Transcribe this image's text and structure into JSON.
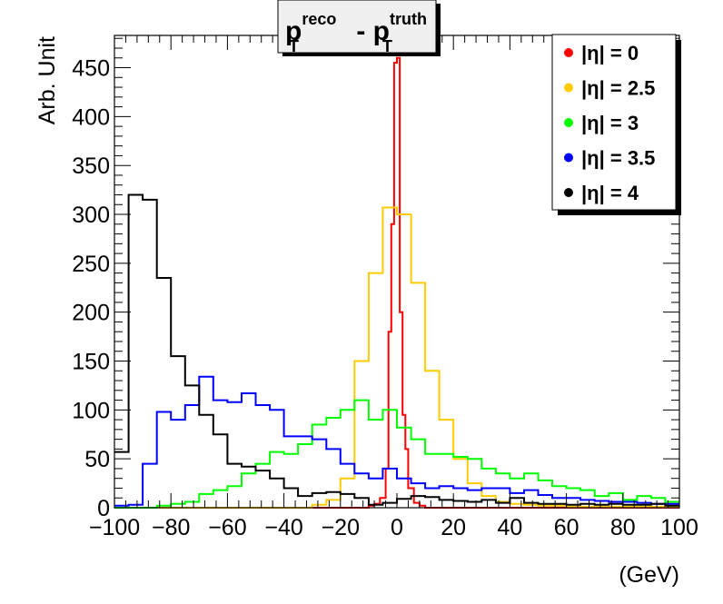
{
  "chart_data": {
    "type": "step-histogram",
    "title": {
      "p": "p",
      "sup1": "reco",
      "sub1": "T",
      "minus": " - ",
      "p2": "p",
      "sup2": "truth",
      "sub2": "T"
    },
    "xlabel": "(GeV)",
    "ylabel": "Arb. Unit",
    "xlim": [
      -100,
      100
    ],
    "ylim": [
      0,
      483
    ],
    "x_ticks": [
      -100,
      -80,
      -60,
      -40,
      -20,
      0,
      20,
      40,
      60,
      80,
      100
    ],
    "x_tick_labels": [
      "−100",
      "−80",
      "−60",
      "−40",
      "−20",
      "0",
      "20",
      "40",
      "60",
      "80",
      "100"
    ],
    "y_ticks": [
      0,
      50,
      100,
      150,
      200,
      250,
      300,
      350,
      400,
      450
    ],
    "y_tick_labels": [
      "0",
      "50",
      "100",
      "150",
      "200",
      "250",
      "300",
      "350",
      "400",
      "450"
    ],
    "legend": {
      "placement": "top-right",
      "entries": [
        {
          "label": "|η| = 0",
          "color": "#ff0000"
        },
        {
          "label": "|η| = 2.5",
          "color": "#ffcc00"
        },
        {
          "label": "|η| = 3",
          "color": "#00ff00"
        },
        {
          "label": "|η| = 3.5",
          "color": "#0000ff"
        },
        {
          "label": "|η| = 4",
          "color": "#000000"
        }
      ]
    },
    "series": [
      {
        "name": "|η| = 0",
        "color": "#ff0000",
        "edges": [
          -100,
          -10,
          -8,
          -6,
          -4,
          -3,
          -2,
          -1,
          0,
          1,
          2,
          3,
          4,
          6,
          8,
          10,
          100
        ],
        "values": [
          0,
          2,
          4,
          10,
          40,
          180,
          290,
          455,
          460,
          200,
          95,
          60,
          20,
          5,
          2,
          0
        ]
      },
      {
        "name": "|η| = 2.5",
        "color": "#ffcc00",
        "edges": [
          -100,
          -30,
          -25,
          -20,
          -15,
          -10,
          -5,
          0,
          5,
          10,
          15,
          20,
          25,
          30,
          35,
          40,
          45,
          50,
          55,
          60,
          65,
          70,
          75,
          80,
          85,
          90,
          95,
          100
        ],
        "values": [
          0,
          3,
          8,
          30,
          150,
          240,
          307,
          300,
          230,
          140,
          90,
          50,
          25,
          12,
          6,
          4,
          3,
          2,
          2,
          1,
          1,
          1,
          1,
          1,
          1,
          1,
          1
        ]
      },
      {
        "name": "|η| = 3",
        "color": "#00ff00",
        "edges": [
          -100,
          -95,
          -90,
          -85,
          -80,
          -75,
          -70,
          -65,
          -60,
          -55,
          -50,
          -45,
          -40,
          -35,
          -30,
          -25,
          -20,
          -15,
          -10,
          -5,
          0,
          5,
          10,
          15,
          20,
          25,
          30,
          35,
          40,
          45,
          50,
          55,
          60,
          65,
          70,
          75,
          80,
          85,
          90,
          95,
          100
        ],
        "values": [
          0,
          0,
          0,
          2,
          4,
          6,
          14,
          18,
          22,
          35,
          45,
          57,
          55,
          65,
          85,
          92,
          100,
          110,
          90,
          100,
          82,
          70,
          55,
          55,
          52,
          50,
          40,
          35,
          30,
          35,
          28,
          22,
          20,
          18,
          12,
          15,
          8,
          12,
          10,
          6
        ]
      },
      {
        "name": "|η| = 3.5",
        "color": "#0000ff",
        "edges": [
          -100,
          -95,
          -90,
          -85,
          -80,
          -75,
          -70,
          -65,
          -60,
          -55,
          -50,
          -45,
          -40,
          -35,
          -30,
          -25,
          -20,
          -15,
          -10,
          -5,
          0,
          5,
          10,
          15,
          20,
          25,
          30,
          35,
          40,
          45,
          50,
          55,
          60,
          65,
          70,
          75,
          80,
          85,
          90,
          95,
          100
        ],
        "values": [
          2,
          3,
          45,
          98,
          90,
          105,
          134,
          110,
          108,
          117,
          105,
          100,
          73,
          73,
          70,
          60,
          45,
          35,
          30,
          40,
          30,
          25,
          20,
          22,
          20,
          18,
          20,
          20,
          15,
          18,
          13,
          10,
          10,
          8,
          7,
          6,
          6,
          5,
          4,
          4
        ]
      },
      {
        "name": "|η| = 4",
        "color": "#000000",
        "edges": [
          -100,
          -95,
          -90,
          -85,
          -80,
          -75,
          -70,
          -65,
          -60,
          -55,
          -50,
          -45,
          -40,
          -35,
          -30,
          -25,
          -20,
          -15,
          -10,
          -5,
          0,
          5,
          10,
          15,
          20,
          25,
          30,
          35,
          40,
          45,
          50,
          55,
          60,
          65,
          70,
          75,
          80,
          85,
          90,
          95,
          100
        ],
        "values": [
          57,
          320,
          315,
          235,
          155,
          125,
          95,
          75,
          45,
          42,
          38,
          30,
          20,
          12,
          15,
          16,
          14,
          10,
          3,
          5,
          9,
          12,
          11,
          8,
          7,
          6,
          8,
          5,
          10,
          5,
          4,
          4,
          3,
          4,
          3,
          4,
          3,
          3,
          4,
          2
        ]
      }
    ]
  }
}
